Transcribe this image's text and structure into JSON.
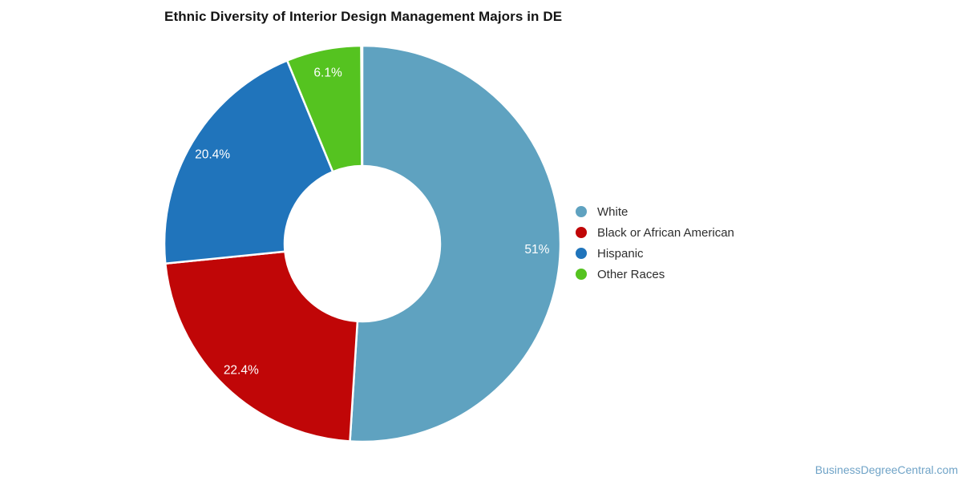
{
  "title": "Ethnic Diversity of Interior Design Management Majors in DE",
  "footer": {
    "link_text": "BusinessDegreeCentral.com",
    "link_color": "#6fa3c7"
  },
  "chart_data": {
    "type": "pie",
    "subtype": "donut",
    "title": "Ethnic Diversity of Interior Design Management Majors in DE",
    "legend_position": "right",
    "start_angle_deg": 0,
    "direction": "clockwise",
    "categories": [
      "White",
      "Black or African American",
      "Hispanic",
      "Other Races"
    ],
    "values": [
      51,
      22.4,
      20.4,
      6.1
    ],
    "slices": [
      {
        "name": "White",
        "value": 51,
        "label": "51%",
        "color": "#5fa2c0"
      },
      {
        "name": "Black or African American",
        "value": 22.4,
        "label": "22.4%",
        "color": "#c00607"
      },
      {
        "name": "Hispanic",
        "value": 20.4,
        "label": "20.4%",
        "color": "#2074bb"
      },
      {
        "name": "Other Races",
        "value": 6.1,
        "label": "6.1%",
        "color": "#55c320"
      }
    ],
    "slice_border_color": "#ffffff",
    "label_color": "#ffffff"
  }
}
